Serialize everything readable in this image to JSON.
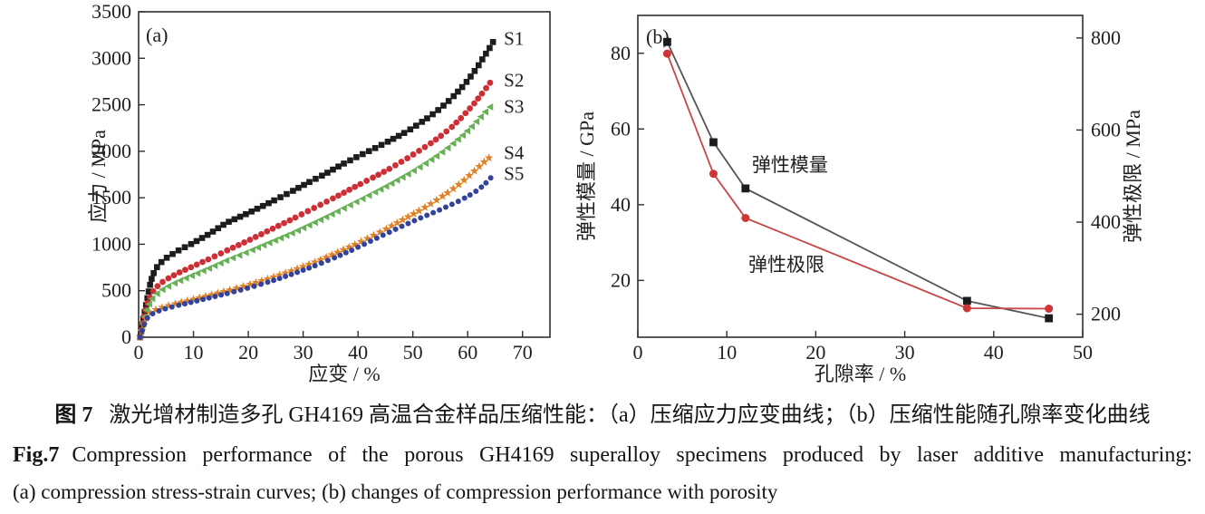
{
  "caption": {
    "zh_label": "图 7",
    "zh_text": "激光增材制造多孔 GH4169 高温合金样品压缩性能：（a）压缩应力应变曲线；（b）压缩性能随孔隙率变化曲线",
    "en_label": "Fig.7",
    "en_text": "Compression performance of the porous GH4169 superalloy specimens produced by laser additive manufacturing:",
    "en_line2": "(a) compression stress-strain curves; (b) changes of compression performance with porosity"
  },
  "chart_data": [
    {
      "type": "scatter",
      "panel_label": "(a)",
      "xlabel": "应变 / %",
      "ylabel": "应力 / MPa",
      "xlim": [
        0,
        75
      ],
      "xticks": [
        0,
        10,
        20,
        30,
        40,
        50,
        60,
        70
      ],
      "ylim": [
        0,
        3500
      ],
      "yticks": [
        0,
        500,
        1000,
        1500,
        2000,
        2500,
        3000,
        3500
      ],
      "grid": false,
      "legend_position": "inside-right-labels",
      "series": [
        {
          "name": "S1",
          "color": "#1c1c1c",
          "marker": "square",
          "label_xy": [
            66.6,
            3210
          ],
          "points": [
            [
              0.3,
              0
            ],
            [
              0.8,
              180
            ],
            [
              1.2,
              300
            ],
            [
              1.6,
              420
            ],
            [
              2.0,
              545
            ],
            [
              2.5,
              655
            ],
            [
              3.0,
              725
            ],
            [
              3.8,
              790
            ],
            [
              5,
              850
            ],
            [
              7,
              925
            ],
            [
              10,
              1015
            ],
            [
              13,
              1115
            ],
            [
              16,
              1230
            ],
            [
              20,
              1335
            ],
            [
              24,
              1450
            ],
            [
              28,
              1570
            ],
            [
              31,
              1665
            ],
            [
              34,
              1755
            ],
            [
              37,
              1855
            ],
            [
              40,
              1945
            ],
            [
              43,
              2030
            ],
            [
              46,
              2120
            ],
            [
              49,
              2215
            ],
            [
              51,
              2290
            ],
            [
              53,
              2370
            ],
            [
              55,
              2460
            ],
            [
              57,
              2565
            ],
            [
              59,
              2690
            ],
            [
              60,
              2760
            ],
            [
              61,
              2840
            ],
            [
              62,
              2925
            ],
            [
              63,
              3020
            ],
            [
              64,
              3110
            ],
            [
              65,
              3215
            ]
          ]
        },
        {
          "name": "S2",
          "color": "#cd2f36",
          "marker": "circle",
          "label_xy": [
            66.6,
            2765
          ],
          "points": [
            [
              0.3,
              0
            ],
            [
              0.7,
              140
            ],
            [
              1.1,
              250
            ],
            [
              1.5,
              340
            ],
            [
              2.0,
              420
            ],
            [
              2.5,
              480
            ],
            [
              3.0,
              525
            ],
            [
              4,
              580
            ],
            [
              5,
              620
            ],
            [
              7,
              685
            ],
            [
              10,
              765
            ],
            [
              13,
              845
            ],
            [
              16,
              930
            ],
            [
              20,
              1040
            ],
            [
              24,
              1155
            ],
            [
              28,
              1270
            ],
            [
              32,
              1390
            ],
            [
              36,
              1510
            ],
            [
              40,
              1635
            ],
            [
              43,
              1725
            ],
            [
              46,
              1820
            ],
            [
              49,
              1925
            ],
            [
              51,
              2000
            ],
            [
              53,
              2075
            ],
            [
              55,
              2160
            ],
            [
              57,
              2255
            ],
            [
              59,
              2370
            ],
            [
              60,
              2435
            ],
            [
              61,
              2500
            ],
            [
              62,
              2575
            ],
            [
              63,
              2650
            ],
            [
              64,
              2730
            ],
            [
              64.5,
              2770
            ]
          ]
        },
        {
          "name": "S3",
          "color": "#66b055",
          "marker": "triangle-left",
          "label_xy": [
            66.6,
            2480
          ],
          "points": [
            [
              0.3,
              0
            ],
            [
              0.7,
              120
            ],
            [
              1.1,
              220
            ],
            [
              1.5,
              300
            ],
            [
              2.0,
              365
            ],
            [
              2.5,
              415
            ],
            [
              3.0,
              450
            ],
            [
              4,
              500
            ],
            [
              5,
              535
            ],
            [
              7,
              595
            ],
            [
              10,
              670
            ],
            [
              13,
              745
            ],
            [
              16,
              825
            ],
            [
              20,
              920
            ],
            [
              24,
              1020
            ],
            [
              28,
              1120
            ],
            [
              32,
              1230
            ],
            [
              36,
              1345
            ],
            [
              40,
              1465
            ],
            [
              43,
              1555
            ],
            [
              46,
              1650
            ],
            [
              49,
              1750
            ],
            [
              51,
              1820
            ],
            [
              53,
              1895
            ],
            [
              55,
              1975
            ],
            [
              57,
              2065
            ],
            [
              59,
              2165
            ],
            [
              61,
              2280
            ],
            [
              62,
              2345
            ],
            [
              63,
              2410
            ],
            [
              64,
              2470
            ],
            [
              64.5,
              2500
            ]
          ]
        },
        {
          "name": "S4",
          "color": "#e08128",
          "marker": "star",
          "label_xy": [
            66.6,
            1985
          ],
          "points": [
            [
              0.3,
              0
            ],
            [
              0.7,
              90
            ],
            [
              1.1,
              165
            ],
            [
              1.5,
              220
            ],
            [
              2.0,
              255
            ],
            [
              3,
              292
            ],
            [
              4,
              315
            ],
            [
              5,
              332
            ],
            [
              7,
              365
            ],
            [
              10,
              408
            ],
            [
              13,
              452
            ],
            [
              16,
              498
            ],
            [
              20,
              562
            ],
            [
              24,
              635
            ],
            [
              28,
              715
            ],
            [
              32,
              805
            ],
            [
              36,
              905
            ],
            [
              39,
              985
            ],
            [
              42,
              1070
            ],
            [
              45,
              1160
            ],
            [
              47,
              1225
            ],
            [
              49,
              1290
            ],
            [
              51,
              1355
            ],
            [
              53,
              1425
            ],
            [
              55,
              1500
            ],
            [
              57,
              1580
            ],
            [
              59,
              1670
            ],
            [
              61,
              1775
            ],
            [
              62,
              1830
            ],
            [
              63,
              1885
            ],
            [
              64,
              1935
            ],
            [
              64.4,
              1950
            ]
          ]
        },
        {
          "name": "S5",
          "color": "#31439b",
          "marker": "dot",
          "label_xy": [
            66.6,
            1760
          ],
          "points": [
            [
              0.3,
              0
            ],
            [
              0.7,
              80
            ],
            [
              1.1,
              150
            ],
            [
              1.5,
              200
            ],
            [
              2.0,
              235
            ],
            [
              3,
              268
            ],
            [
              4,
              290
            ],
            [
              5,
              308
            ],
            [
              7,
              340
            ],
            [
              10,
              382
            ],
            [
              13,
              425
            ],
            [
              16,
              468
            ],
            [
              20,
              530
            ],
            [
              24,
              600
            ],
            [
              28,
              678
            ],
            [
              32,
              765
            ],
            [
              36,
              862
            ],
            [
              39,
              940
            ],
            [
              42,
              1025
            ],
            [
              45,
              1110
            ],
            [
              47,
              1165
            ],
            [
              49,
              1220
            ],
            [
              51,
              1272
            ],
            [
              53,
              1322
            ],
            [
              55,
              1372
            ],
            [
              57,
              1425
            ],
            [
              59,
              1482
            ],
            [
              61,
              1550
            ],
            [
              62,
              1590
            ],
            [
              63,
              1640
            ],
            [
              64,
              1700
            ],
            [
              64.6,
              1740
            ]
          ]
        }
      ]
    },
    {
      "type": "line",
      "panel_label": "(b)",
      "xlabel": "孔隙率 / %",
      "ylabel_left": "弹性模量 / GPa",
      "ylabel_right": "弹性极限 / MPa",
      "xlim": [
        0,
        50
      ],
      "xticks": [
        0,
        10,
        20,
        30,
        40,
        50
      ],
      "ylim_left": [
        5,
        90
      ],
      "yticks_left": [
        20,
        40,
        60,
        80
      ],
      "ylim_right": [
        150,
        849
      ],
      "yticks_right": [
        200,
        400,
        600,
        800
      ],
      "grid": false,
      "x": [
        3.3,
        8.5,
        12.1,
        37,
        46.2
      ],
      "series": [
        {
          "name": "弹性模量",
          "axis": "left",
          "marker": "square",
          "marker_color": "#1c1c1c",
          "line_color": "#555555",
          "values": [
            83,
            56.5,
            44.3,
            14.6,
            10
          ],
          "label_xy": [
            17.1,
            50.5
          ]
        },
        {
          "name": "弹性极限",
          "axis": "right",
          "marker": "circle",
          "marker_color": "#d13434",
          "line_color": "#c84848",
          "values": [
            766,
            505,
            409,
            213,
            212
          ],
          "label_xy": [
            16.7,
            24.2
          ]
        }
      ]
    }
  ]
}
